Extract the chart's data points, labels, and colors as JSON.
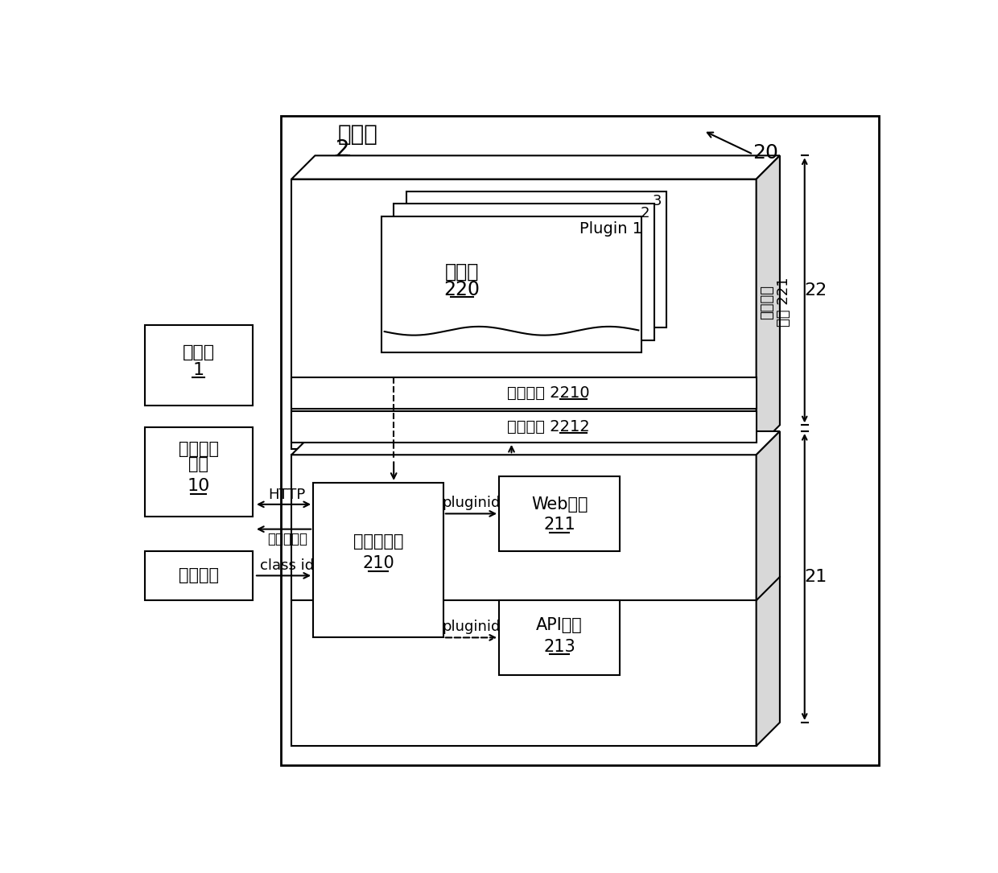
{
  "bg_color": "#ffffff",
  "title_client": "客户端",
  "label_client_num": "2",
  "label_20": "20",
  "label_server_line1": "服务端",
  "label_server_num": "1",
  "label_pack1": "打包加密",
  "label_pack2": "工具",
  "label_pack_num": "10",
  "label_page_trigger": "页面触发",
  "label_plugin_lib": "插件库",
  "label_plugin_lib_num": "220",
  "label_plugin1": "Plugin 1",
  "label_plugin_iface": "插件接口",
  "label_plugin_iface_num": "2210",
  "label_frame_iface": "框架接口",
  "label_frame_iface_num": "2212",
  "label_fw_module1": "插件框架",
  "label_fw_module2": "模块 221",
  "label_22": "22",
  "label_21": "21",
  "label_plugin_mgr": "插件管理器",
  "label_plugin_mgr_num": "210",
  "label_web_engine": "Web引擎",
  "label_web_engine_num": "211",
  "label_api_module": "API模块",
  "label_api_module_num": "213",
  "label_http": "HTTP",
  "label_encrypted": "加密数据包",
  "label_classid": "class id",
  "label_pluginid1": "pluginid",
  "label_pluginid2": "pluginid",
  "label_num_2": "2",
  "label_num_3": "3"
}
